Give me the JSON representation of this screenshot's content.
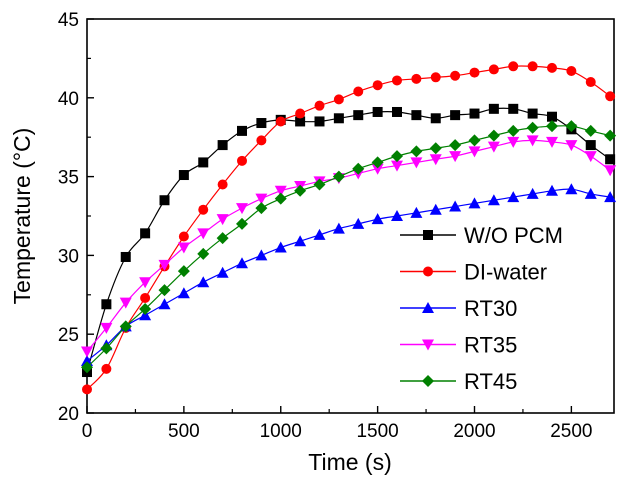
{
  "chart_data": {
    "type": "line",
    "xlabel": "Time (s)",
    "ylabel": "Temperature (°C)",
    "xlim": [
      0,
      2720
    ],
    "ylim": [
      20,
      45
    ],
    "xticks": [
      0,
      500,
      1000,
      1500,
      2000,
      2500
    ],
    "yticks": [
      20,
      25,
      30,
      35,
      40,
      45
    ],
    "grid": false,
    "legend_position": "bottom-right",
    "series": [
      {
        "name": "W/O PCM",
        "color": "#000000",
        "marker": "square",
        "x": [
          0,
          100,
          200,
          300,
          400,
          500,
          600,
          700,
          800,
          900,
          1000,
          1100,
          1200,
          1300,
          1400,
          1500,
          1600,
          1700,
          1800,
          1900,
          2000,
          2100,
          2200,
          2300,
          2400,
          2500,
          2600,
          2700
        ],
        "y": [
          22.6,
          26.9,
          29.9,
          31.4,
          33.5,
          35.1,
          35.9,
          37.0,
          37.9,
          38.4,
          38.6,
          38.5,
          38.5,
          38.7,
          38.9,
          39.1,
          39.1,
          38.9,
          38.7,
          38.9,
          39.0,
          39.3,
          39.3,
          39.0,
          38.8,
          38.0,
          37.0,
          36.1
        ]
      },
      {
        "name": "DI-water",
        "color": "#ff0000",
        "marker": "circle",
        "x": [
          0,
          100,
          200,
          300,
          400,
          500,
          600,
          700,
          800,
          900,
          1000,
          1100,
          1200,
          1300,
          1400,
          1500,
          1600,
          1700,
          1800,
          1900,
          2000,
          2100,
          2200,
          2300,
          2400,
          2500,
          2600,
          2700
        ],
        "y": [
          21.5,
          22.8,
          25.4,
          27.3,
          29.3,
          31.2,
          32.9,
          34.5,
          36.0,
          37.3,
          38.5,
          39.0,
          39.5,
          39.9,
          40.4,
          40.8,
          41.1,
          41.2,
          41.3,
          41.4,
          41.6,
          41.8,
          42.0,
          42.0,
          41.9,
          41.7,
          41.0,
          40.1
        ]
      },
      {
        "name": "RT30",
        "color": "#0000ff",
        "marker": "triangle-up",
        "x": [
          0,
          100,
          200,
          300,
          400,
          500,
          600,
          700,
          800,
          900,
          1000,
          1100,
          1200,
          1300,
          1400,
          1500,
          1600,
          1700,
          1800,
          1900,
          2000,
          2100,
          2200,
          2300,
          2400,
          2500,
          2600,
          2700
        ],
        "y": [
          23.3,
          24.3,
          25.5,
          26.2,
          26.9,
          27.6,
          28.3,
          28.9,
          29.5,
          30.0,
          30.5,
          30.9,
          31.3,
          31.7,
          32.0,
          32.3,
          32.5,
          32.7,
          32.9,
          33.1,
          33.3,
          33.5,
          33.7,
          33.9,
          34.1,
          34.2,
          33.9,
          33.7
        ]
      },
      {
        "name": "RT35",
        "color": "#ff00ff",
        "marker": "triangle-down",
        "x": [
          0,
          100,
          200,
          300,
          400,
          500,
          600,
          700,
          800,
          900,
          1000,
          1100,
          1200,
          1300,
          1400,
          1500,
          1600,
          1700,
          1800,
          1900,
          2000,
          2100,
          2200,
          2300,
          2400,
          2500,
          2600,
          2700
        ],
        "y": [
          23.9,
          25.4,
          27.0,
          28.3,
          29.4,
          30.5,
          31.4,
          32.3,
          33.0,
          33.6,
          34.1,
          34.4,
          34.7,
          34.9,
          35.2,
          35.5,
          35.7,
          35.9,
          36.1,
          36.3,
          36.6,
          36.9,
          37.2,
          37.3,
          37.2,
          37.0,
          36.3,
          35.4
        ]
      },
      {
        "name": "RT45",
        "color": "#008000",
        "marker": "diamond",
        "x": [
          0,
          100,
          200,
          300,
          400,
          500,
          600,
          700,
          800,
          900,
          1000,
          1100,
          1200,
          1300,
          1400,
          1500,
          1600,
          1700,
          1800,
          1900,
          2000,
          2100,
          2200,
          2300,
          2400,
          2500,
          2600,
          2700
        ],
        "y": [
          22.9,
          24.1,
          25.5,
          26.6,
          27.8,
          29.0,
          30.1,
          31.1,
          32.0,
          33.0,
          33.6,
          34.1,
          34.5,
          35.0,
          35.5,
          35.9,
          36.3,
          36.6,
          36.8,
          37.0,
          37.3,
          37.6,
          37.9,
          38.1,
          38.2,
          38.2,
          37.9,
          37.6
        ]
      }
    ]
  }
}
